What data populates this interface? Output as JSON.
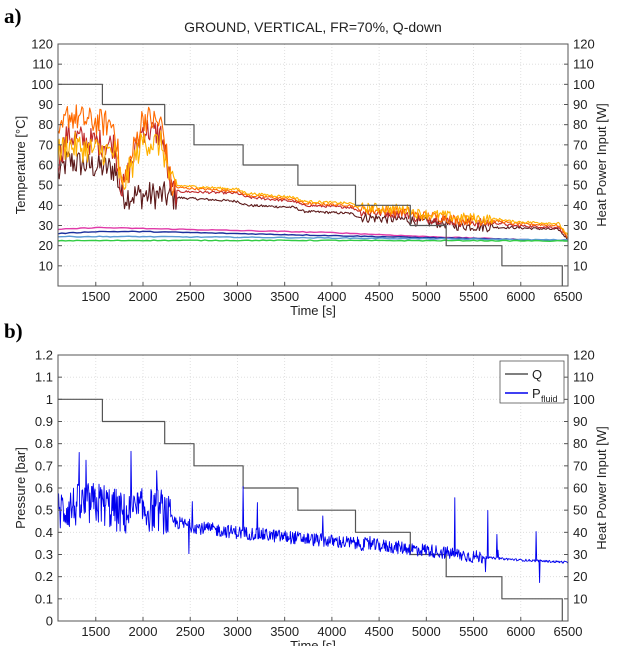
{
  "chart_data": [
    {
      "panel_label": "a)",
      "type": "line",
      "title": "GROUND, VERTICAL, FR=70%, Q-down",
      "xlabel": "Time [s]",
      "ylabel": "Temperature [°C]",
      "y2label": "Heat Power Input [W]",
      "xlim": [
        1100,
        6500
      ],
      "ylim": [
        0,
        120
      ],
      "y2lim": [
        0,
        120
      ],
      "xticks": [
        1500,
        2000,
        2500,
        3000,
        3500,
        4000,
        4500,
        5000,
        5500,
        6000,
        6500
      ],
      "yticks": [
        10,
        20,
        30,
        40,
        50,
        60,
        70,
        80,
        90,
        100,
        110,
        120
      ],
      "y2ticks": [
        10,
        20,
        30,
        40,
        50,
        60,
        70,
        80,
        90,
        100,
        110,
        120
      ],
      "grid": true,
      "power_step": {
        "name": "Q",
        "color": "#555555",
        "x": [
          1100,
          1570,
          1570,
          2230,
          2230,
          2540,
          2540,
          3060,
          3060,
          3640,
          3640,
          4250,
          4250,
          4830,
          4830,
          5210,
          5210,
          5800,
          5800,
          6440,
          6440
        ],
        "y": [
          100,
          100,
          90,
          90,
          80,
          80,
          70,
          70,
          60,
          60,
          50,
          50,
          40,
          40,
          30,
          30,
          20,
          20,
          10,
          10,
          0
        ]
      },
      "series": [
        {
          "color": "#5c1a1a",
          "x": [
            1100,
            1200,
            1400,
            1700,
            1780,
            2000,
            2200,
            2300,
            3000,
            3100,
            3600,
            3700,
            4200,
            4300,
            4800,
            4900,
            5200,
            5300,
            5800,
            5900,
            6400,
            6500
          ],
          "y": [
            55,
            62,
            60,
            58,
            45,
            45,
            45,
            44,
            42,
            40,
            39,
            37,
            36,
            34,
            33,
            32,
            31,
            30,
            29,
            29,
            28,
            23
          ]
        },
        {
          "color": "#c0282a",
          "x": [
            1100,
            1200,
            1400,
            1700,
            1780,
            2000,
            2200,
            2300,
            3000,
            3100,
            3600,
            3700,
            4200,
            4300,
            4800,
            4900,
            5200,
            5300,
            5800,
            5900,
            6400,
            6500
          ],
          "y": [
            62,
            75,
            72,
            70,
            47,
            78,
            75,
            47,
            46,
            44,
            42,
            40,
            39,
            37,
            36,
            34,
            33,
            32,
            31,
            30,
            29,
            24
          ]
        },
        {
          "color": "#ff6a00",
          "x": [
            1100,
            1200,
            1400,
            1700,
            1780,
            2000,
            2200,
            2300,
            3000,
            3100,
            3600,
            3700,
            4200,
            4300,
            4800,
            4900,
            5200,
            5300,
            5800,
            5900,
            6400,
            6500
          ],
          "y": [
            70,
            85,
            82,
            80,
            48,
            84,
            80,
            49,
            47,
            45,
            43,
            41,
            40,
            38,
            37,
            35,
            34,
            33,
            32,
            31,
            30,
            24
          ]
        },
        {
          "color": "#ffb000",
          "x": [
            1100,
            1200,
            1400,
            1700,
            1780,
            2000,
            2200,
            2300,
            3000,
            3100,
            3600,
            3700,
            4200,
            4300,
            4800,
            4900,
            5200,
            5300,
            5800,
            5900,
            6400,
            6500
          ],
          "y": [
            66,
            70,
            68,
            66,
            49,
            72,
            70,
            50,
            48,
            46,
            44,
            42,
            41,
            39,
            38,
            36,
            35,
            34,
            33,
            32,
            31,
            25
          ]
        },
        {
          "color": "#e03aa8",
          "x": [
            1100,
            1500,
            2000,
            2500,
            3000,
            3500,
            4000,
            4500,
            5000,
            5500,
            6000,
            6500
          ],
          "y": [
            28,
            29,
            28.5,
            28,
            27.5,
            27,
            26.5,
            25.5,
            24.5,
            23.8,
            23,
            22.5
          ]
        },
        {
          "color": "#1a2f9c",
          "x": [
            1100,
            1500,
            2000,
            2500,
            3000,
            3500,
            4000,
            4500,
            5000,
            5500,
            6000,
            6500
          ],
          "y": [
            26,
            27,
            27,
            26.5,
            26,
            25.5,
            25,
            24.5,
            24,
            23.5,
            23,
            22.5
          ]
        },
        {
          "color": "#5a9bd5",
          "x": [
            1100,
            1500,
            2000,
            2500,
            3000,
            3500,
            4000,
            4500,
            5000,
            5500,
            6000,
            6500
          ],
          "y": [
            24.5,
            24.5,
            24.5,
            24.3,
            24.2,
            24,
            23.8,
            23.6,
            23.4,
            23.2,
            23,
            22.8
          ]
        },
        {
          "color": "#33cc44",
          "x": [
            1100,
            1500,
            2000,
            2500,
            3000,
            3500,
            4000,
            4500,
            5000,
            5500,
            6000,
            6500
          ],
          "y": [
            22.5,
            22.5,
            22.6,
            22.6,
            22.6,
            22.6,
            22.6,
            22.5,
            22.5,
            22.5,
            22.4,
            22.3
          ]
        }
      ]
    },
    {
      "panel_label": "b)",
      "type": "line",
      "xlabel": "Time [s]",
      "ylabel": "Pressure [bar]",
      "y2label": "Heat Power Input [W]",
      "xlim": [
        1100,
        6500
      ],
      "ylim": [
        0,
        1.2
      ],
      "y2lim": [
        0,
        120
      ],
      "xticks": [
        1500,
        2000,
        2500,
        3000,
        3500,
        4000,
        4500,
        5000,
        5500,
        6000,
        6500
      ],
      "yticks": [
        0,
        0.1,
        0.2,
        0.3,
        0.4,
        0.5,
        0.6,
        0.7,
        0.8,
        0.9,
        1,
        1.1,
        1.2
      ],
      "y2ticks": [
        10,
        20,
        30,
        40,
        50,
        60,
        70,
        80,
        90,
        100,
        110,
        120
      ],
      "grid": true,
      "legend": {
        "position": "top-right",
        "entries": [
          {
            "label": "Q",
            "color": "#555555"
          },
          {
            "label": "P",
            "subscript": "fluid",
            "color": "#0000ee"
          }
        ]
      },
      "series": [
        {
          "name": "Q",
          "color": "#555555",
          "x": [
            1100,
            1570,
            1570,
            2230,
            2230,
            2540,
            2540,
            3060,
            3060,
            3640,
            3640,
            4250,
            4250,
            4830,
            4830,
            5210,
            5210,
            5800,
            5800,
            6440,
            6440
          ],
          "y": [
            100,
            100,
            90,
            90,
            80,
            80,
            70,
            70,
            60,
            60,
            50,
            50,
            40,
            40,
            30,
            30,
            20,
            20,
            10,
            10,
            0
          ]
        },
        {
          "name": "Pfluid",
          "color": "#0000ee",
          "x": [
            1100,
            1300,
            1570,
            1800,
            2000,
            2200,
            2300,
            2600,
            3000,
            3500,
            4000,
            4500,
            5000,
            5500,
            6000,
            6500
          ],
          "y": [
            0.5,
            0.52,
            0.53,
            0.48,
            0.5,
            0.5,
            0.45,
            0.42,
            0.4,
            0.38,
            0.36,
            0.34,
            0.32,
            0.29,
            0.275,
            0.265
          ]
        }
      ]
    }
  ]
}
